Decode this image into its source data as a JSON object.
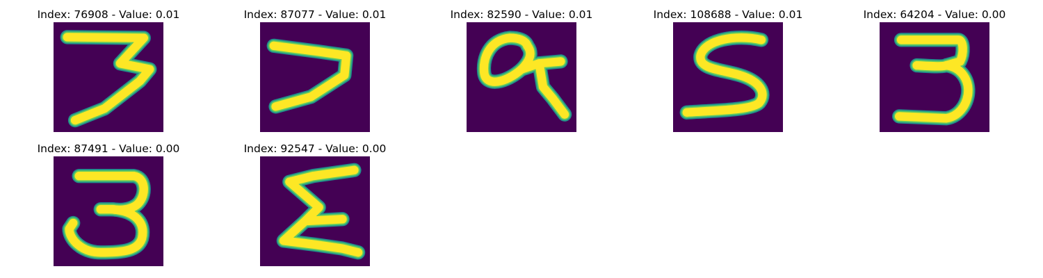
{
  "colors": {
    "background": "#440154",
    "stroke_edge": "#21918c",
    "stroke_mid": "#5ec962",
    "stroke_core": "#fde725"
  },
  "panels": [
    {
      "title": "Index: 76908 - Value: 0.01",
      "glyph": "digit-3-thin"
    },
    {
      "title": "Index: 87077 - Value: 0.01",
      "glyph": "digit-7"
    },
    {
      "title": "Index: 82590 - Value: 0.01",
      "glyph": "digit-9-looped"
    },
    {
      "title": "Index: 108688 - Value: 0.01",
      "glyph": "digit-5"
    },
    {
      "title": "Index: 64204 - Value: 0.00",
      "glyph": "digit-3"
    },
    {
      "title": "Index: 87491 - Value: 0.00",
      "glyph": "digit-3-bold"
    },
    {
      "title": "Index: 92547 - Value: 0.00",
      "glyph": "sigma-shape"
    }
  ]
}
